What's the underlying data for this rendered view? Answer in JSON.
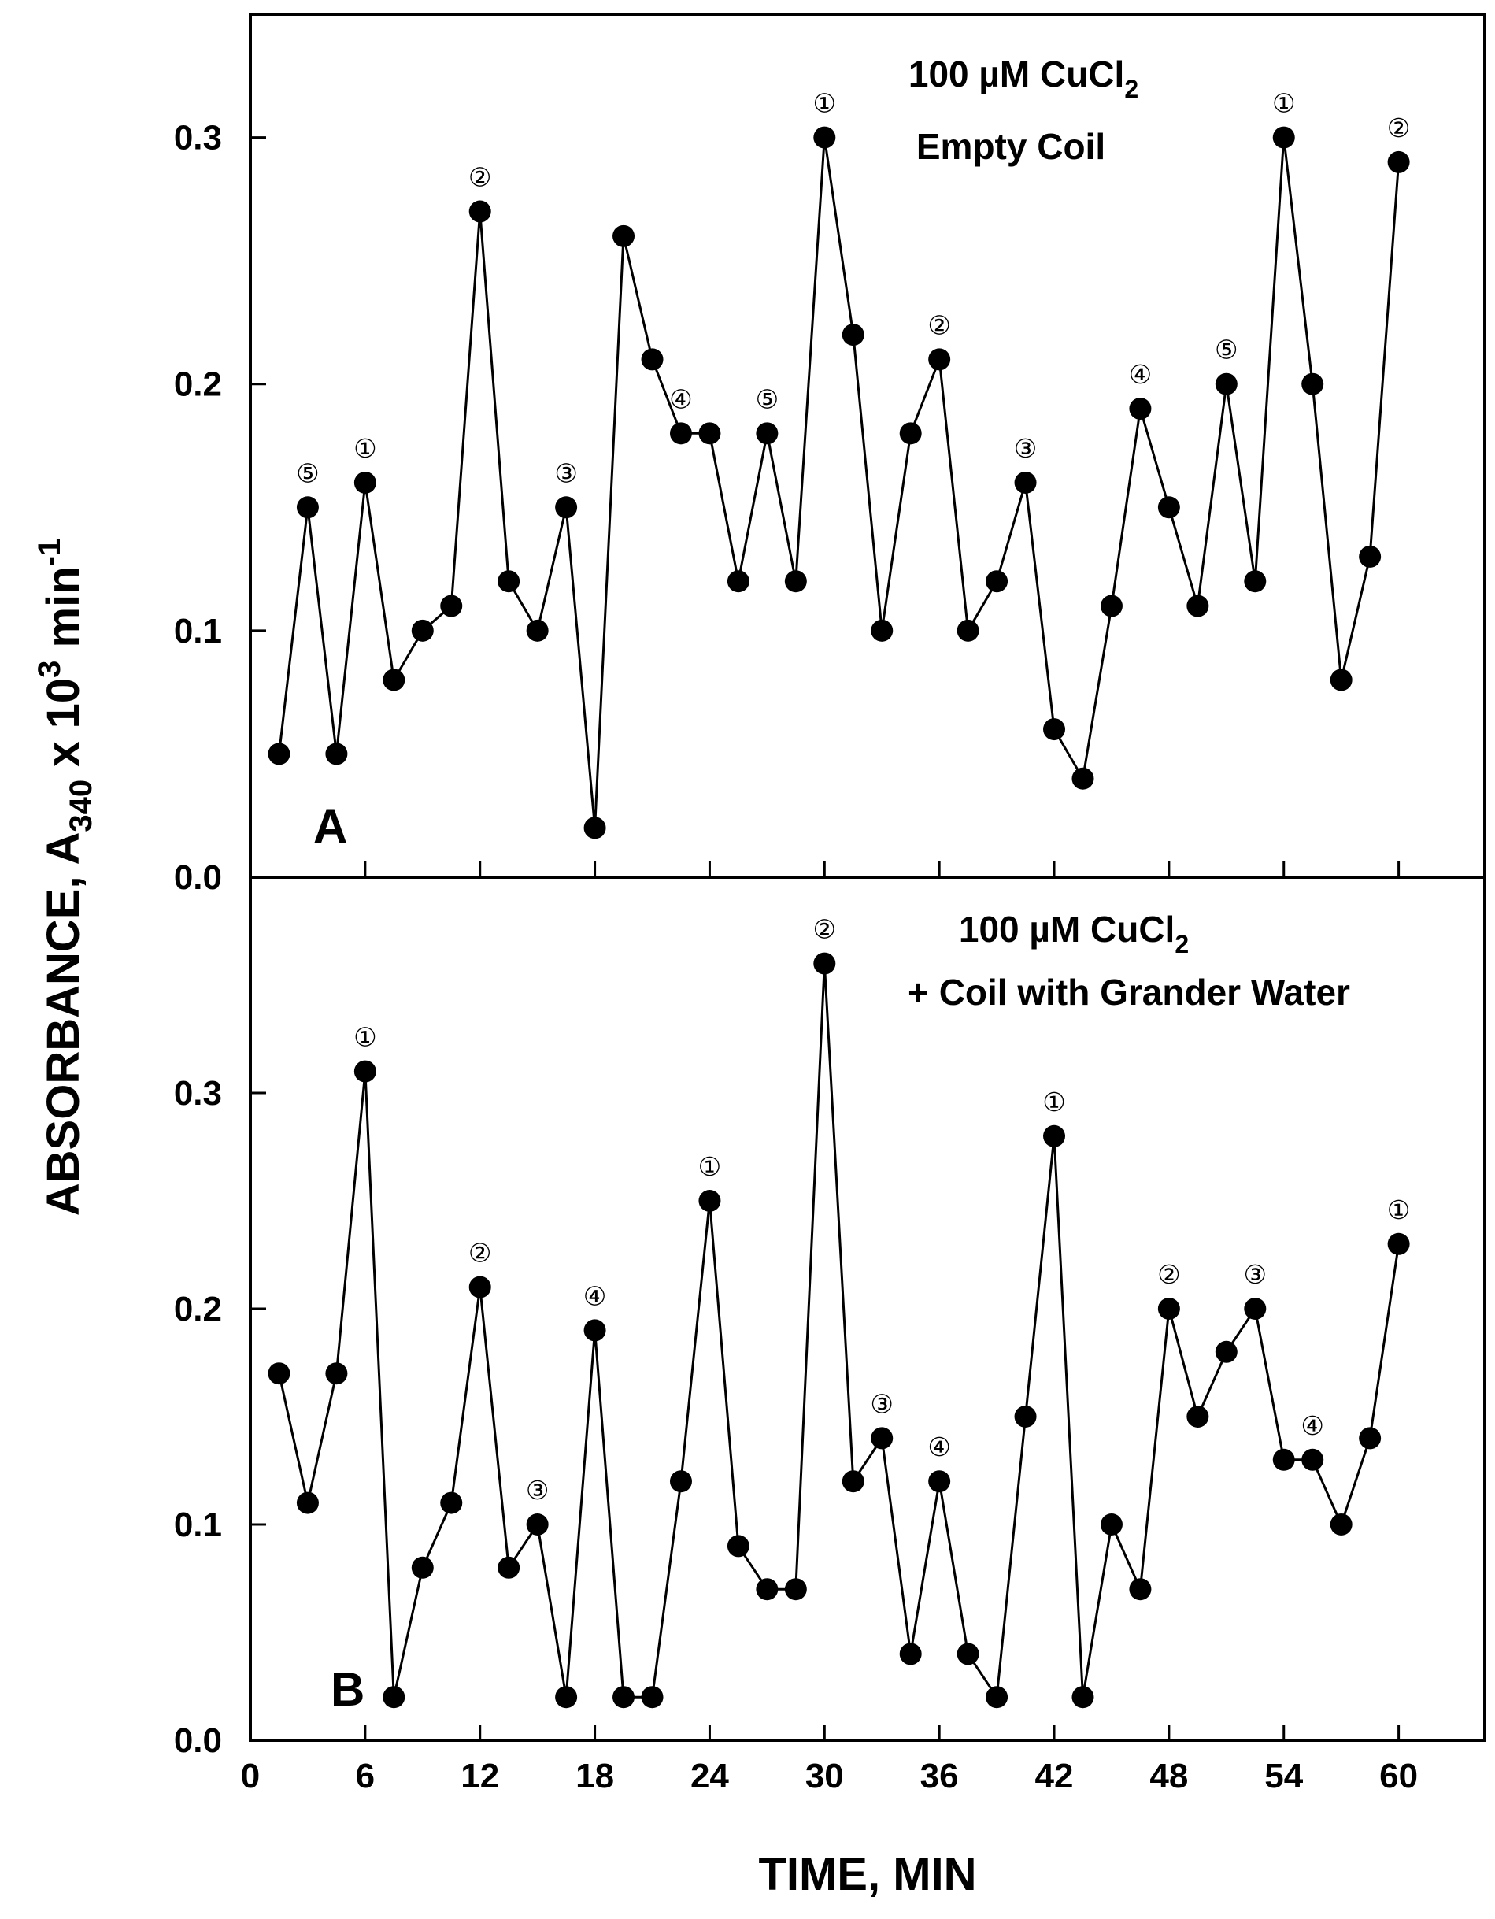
{
  "chart_data": {
    "type": "line",
    "shared": {
      "xlabel": "TIME, MIN",
      "ylabel": {
        "main": "ABSORBANCE, A",
        "sub": "340",
        "mid": " x 10",
        "sup1": "3",
        "tail": " min",
        "sup2": "-1"
      },
      "xlim": [
        0,
        64.5
      ],
      "xticks": [
        0,
        6,
        12,
        18,
        24,
        30,
        36,
        42,
        48,
        54,
        60
      ],
      "xtick_labels": [
        "0",
        "6",
        "12",
        "18",
        "24",
        "30",
        "36",
        "42",
        "48",
        "54",
        "60"
      ],
      "marker_style": "filled-circle",
      "line_color": "#000000"
    },
    "panels": [
      {
        "id": "A",
        "panel_letter": "A",
        "title_line1": "100 µM CuCl",
        "title_line1_sub": "2",
        "title_line2": "Empty Coil",
        "ylim": [
          0,
          0.35
        ],
        "yticks": [
          "0.0",
          "0.1",
          "0.2",
          "0.3"
        ],
        "yticks_values": [
          0,
          0.1,
          0.2,
          0.3
        ],
        "x": [
          1.5,
          3,
          4.5,
          6,
          7.5,
          9,
          10.5,
          12,
          13.5,
          15,
          16.5,
          18,
          19.5,
          21,
          22.5,
          24,
          25.5,
          27,
          28.5,
          30,
          31.5,
          33,
          34.5,
          36,
          37.5,
          39,
          40.5,
          42,
          43.5,
          45,
          46.5,
          48,
          49.5,
          51,
          52.5,
          54,
          55.5,
          57,
          58.5,
          60
        ],
        "y": [
          0.05,
          0.15,
          0.05,
          0.16,
          0.08,
          0.1,
          0.11,
          0.27,
          0.12,
          0.1,
          0.15,
          0.02,
          0.26,
          0.21,
          0.18,
          0.18,
          0.12,
          0.18,
          0.12,
          0.3,
          0.22,
          0.1,
          0.18,
          0.21,
          0.1,
          0.12,
          0.16,
          0.06,
          0.04,
          0.11,
          0.19,
          0.15,
          0.11,
          0.2,
          0.12,
          0.3,
          0.2,
          0.08,
          0.13,
          0.29
        ],
        "annotations": [
          {
            "index": 1,
            "label": "⑤"
          },
          {
            "index": 3,
            "label": "①"
          },
          {
            "index": 7,
            "label": "②"
          },
          {
            "index": 10,
            "label": "③"
          },
          {
            "index": 14,
            "label": "④"
          },
          {
            "index": 17,
            "label": "⑤"
          },
          {
            "index": 19,
            "label": "①"
          },
          {
            "index": 23,
            "label": "②"
          },
          {
            "index": 26,
            "label": "③"
          },
          {
            "index": 30,
            "label": "④"
          },
          {
            "index": 33,
            "label": "⑤"
          },
          {
            "index": 35,
            "label": "①"
          },
          {
            "index": 39,
            "label": "②"
          }
        ]
      },
      {
        "id": "B",
        "panel_letter": "B",
        "title_line1": "100 µM CuCl",
        "title_line1_sub": "2",
        "title_line2": "+ Coil with Grander Water",
        "ylim": [
          0,
          0.4
        ],
        "yticks": [
          "0.0",
          "0.1",
          "0.2",
          "0.3"
        ],
        "yticks_values": [
          0,
          0.1,
          0.2,
          0.3
        ],
        "x": [
          1.5,
          3,
          4.5,
          6,
          7.5,
          9,
          10.5,
          12,
          13.5,
          15,
          16.5,
          18,
          19.5,
          21,
          22.5,
          24,
          25.5,
          27,
          28.5,
          30,
          31.5,
          33,
          34.5,
          36,
          37.5,
          39,
          40.5,
          42,
          43.5,
          45,
          46.5,
          48,
          49.5,
          51,
          52.5,
          54,
          55.5,
          57,
          58.5,
          60
        ],
        "y": [
          0.17,
          0.11,
          0.17,
          0.31,
          0.02,
          0.08,
          0.11,
          0.21,
          0.08,
          0.1,
          0.02,
          0.19,
          0.02,
          0.02,
          0.12,
          0.25,
          0.09,
          0.07,
          0.07,
          0.36,
          0.12,
          0.14,
          0.04,
          0.12,
          0.04,
          0.02,
          0.15,
          0.28,
          0.02,
          0.1,
          0.07,
          0.2,
          0.15,
          0.18,
          0.2,
          0.13,
          0.13,
          0.1,
          0.14,
          0.23
        ],
        "annotations": [
          {
            "index": 3,
            "label": "①"
          },
          {
            "index": 7,
            "label": "②"
          },
          {
            "index": 9,
            "label": "③"
          },
          {
            "index": 11,
            "label": "④"
          },
          {
            "index": 15,
            "label": "①"
          },
          {
            "index": 19,
            "label": "②"
          },
          {
            "index": 21,
            "label": "③"
          },
          {
            "index": 23,
            "label": "④"
          },
          {
            "index": 27,
            "label": "①"
          },
          {
            "index": 31,
            "label": "②"
          },
          {
            "index": 34,
            "label": "③"
          },
          {
            "index": 36,
            "label": "④"
          },
          {
            "index": 39,
            "label": "①"
          }
        ]
      }
    ]
  }
}
